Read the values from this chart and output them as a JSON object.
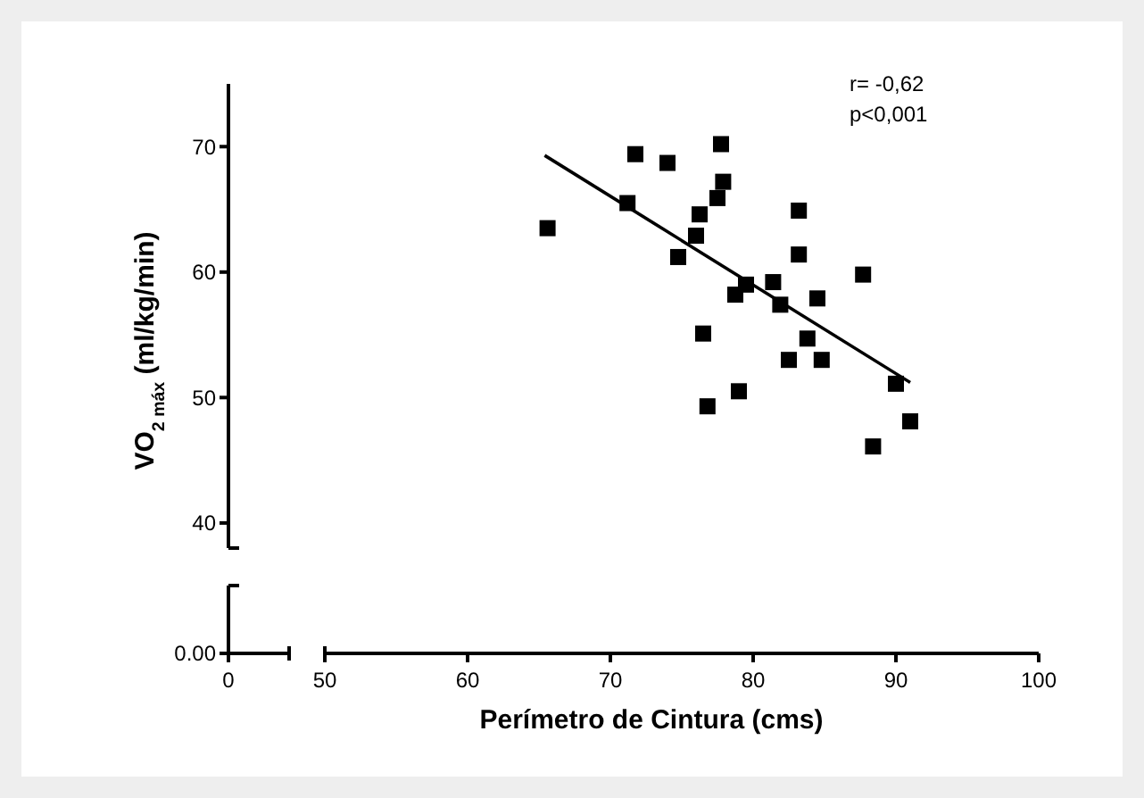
{
  "chart_data": {
    "type": "scatter",
    "xlabel": "Perímetro de Cintura (cms)",
    "ylabel": "VO$_{2 máx}$ (ml/kg/min)",
    "xlim": [
      50,
      100
    ],
    "ylim": [
      38,
      75
    ],
    "xticks": [
      50,
      60,
      70,
      80,
      90,
      100
    ],
    "yticks": [
      40,
      50,
      60,
      70
    ],
    "grid": false,
    "annotations": [
      "r= -0,62",
      "p<0,001",
      "0.00",
      "0"
    ],
    "series": [
      {
        "color": "#000000",
        "marker": "square",
        "x": [
          65.6,
          71.75,
          74.0,
          77.75,
          71.2,
          77.9,
          77.5,
          76.25,
          76.0,
          74.75,
          83.2,
          83.2,
          87.7,
          79.5,
          78.75,
          81.4,
          81.9,
          84.5,
          76.5,
          83.8,
          82.5,
          84.8,
          90.0,
          79.0,
          76.8,
          91.0,
          88.4
        ],
        "values": [
          63.5,
          69.4,
          68.7,
          70.2,
          65.5,
          67.2,
          65.9,
          64.6,
          62.9,
          61.2,
          64.9,
          61.4,
          59.8,
          59.0,
          58.2,
          59.2,
          57.4,
          57.9,
          55.1,
          54.7,
          53.0,
          53.0,
          51.1,
          50.5,
          49.3,
          48.1,
          46.1
        ]
      },
      {
        "type": "line",
        "color": "#000000",
        "x": [
          65.4,
          91.0
        ],
        "values": [
          69.3,
          51.2
        ]
      }
    ]
  }
}
